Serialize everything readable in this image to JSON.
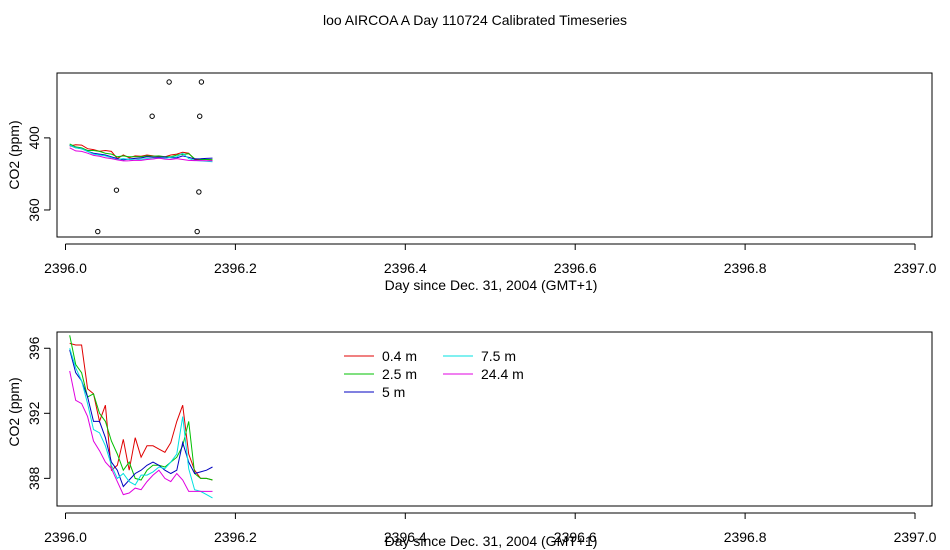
{
  "title": "loo AIRCOA A  Day 110724  Calibrated Timeseries",
  "colors": {
    "0.4 m": "#e00000",
    "2.5 m": "#00c000",
    "5 m": "#0000c0",
    "7.5 m": "#00e0e0",
    "24.4 m": "#e000e0",
    "points": "#000000"
  },
  "chart_data": [
    {
      "type": "line",
      "xlabel": "Day since Dec. 31, 2004 (GMT+1)",
      "ylabel": "CO2 (ppm)",
      "xlim": [
        2395.99,
        2397.02
      ],
      "ylim": [
        345,
        436
      ],
      "xticks": [
        2396.0,
        2396.2,
        2396.4,
        2396.6,
        2396.8,
        2397.0
      ],
      "xtick_labels": [
        "2396.0",
        "2396.2",
        "2396.4",
        "2396.6",
        "2396.8",
        "2397.0"
      ],
      "yticks": [
        360,
        400
      ],
      "ytick_labels": [
        "360",
        "400"
      ],
      "series": [
        {
          "name": "0.4 m",
          "x": [
            2396.005,
            2396.012,
            2396.019,
            2396.026,
            2396.033,
            2396.04,
            2396.047,
            2396.054,
            2396.061,
            2396.068,
            2396.075,
            2396.082,
            2396.089,
            2396.096,
            2396.103,
            2396.11,
            2396.117,
            2396.124,
            2396.131,
            2396.138,
            2396.145,
            2396.152,
            2396.159,
            2396.166,
            2396.173
          ],
          "y": [
            395.5,
            396.2,
            396.0,
            394.0,
            393.5,
            392.6,
            393.0,
            392.5,
            388.5,
            390.5,
            389.0,
            390.0,
            389.8,
            390.5,
            390.0,
            389.5,
            389.5,
            390.5,
            391.0,
            392.0,
            391.5,
            388.0,
            388.0,
            388.0,
            387.8
          ]
        },
        {
          "name": "2.5 m",
          "x": [
            2396.005,
            2396.012,
            2396.019,
            2396.026,
            2396.033,
            2396.04,
            2396.047,
            2396.054,
            2396.061,
            2396.068,
            2396.075,
            2396.082,
            2396.089,
            2396.096,
            2396.103,
            2396.11,
            2396.117,
            2396.124,
            2396.131,
            2396.138,
            2396.145,
            2396.152,
            2396.159,
            2396.166,
            2396.173
          ],
          "y": [
            396.6,
            395.0,
            394.5,
            393.0,
            393.0,
            392.5,
            391.5,
            391.0,
            389.5,
            390.0,
            389.5,
            389.5,
            389.5,
            390.0,
            389.8,
            390.0,
            389.5,
            389.5,
            390.5,
            390.8,
            391.2,
            388.5,
            388.0,
            388.0,
            387.9
          ]
        },
        {
          "name": "5 m",
          "x": [
            2396.005,
            2396.012,
            2396.019,
            2396.026,
            2396.033,
            2396.04,
            2396.047,
            2396.054,
            2396.061,
            2396.068,
            2396.075,
            2396.082,
            2396.089,
            2396.096,
            2396.103,
            2396.11,
            2396.117,
            2396.124,
            2396.131,
            2396.138,
            2396.145,
            2396.152,
            2396.159,
            2396.166,
            2396.173
          ],
          "y": [
            395.8,
            394.5,
            394.0,
            392.5,
            391.5,
            391.0,
            390.5,
            389.5,
            388.5,
            387.8,
            388.3,
            388.6,
            388.9,
            389.5,
            389.3,
            389.2,
            389.4,
            389.0,
            388.9,
            390.0,
            389.2,
            388.3,
            388.4,
            388.6,
            388.8
          ]
        },
        {
          "name": "7.5 m",
          "x": [
            2396.005,
            2396.012,
            2396.019,
            2396.026,
            2396.033,
            2396.04,
            2396.047,
            2396.054,
            2396.061,
            2396.068,
            2396.075,
            2396.082,
            2396.089,
            2396.096,
            2396.103,
            2396.11,
            2396.117,
            2396.124,
            2396.131,
            2396.138,
            2396.145,
            2396.152,
            2396.159,
            2396.166,
            2396.173
          ],
          "y": [
            396.0,
            394.5,
            394.0,
            392.5,
            391.0,
            390.5,
            390.0,
            389.0,
            388.0,
            388.5,
            388.0,
            387.8,
            388.2,
            388.5,
            388.4,
            388.8,
            388.6,
            389.2,
            389.5,
            391.5,
            388.5,
            387.5,
            387.2,
            387.0,
            386.8
          ]
        },
        {
          "name": "24.4 m",
          "x": [
            2396.005,
            2396.012,
            2396.019,
            2396.026,
            2396.033,
            2396.04,
            2396.047,
            2396.054,
            2396.061,
            2396.068,
            2396.075,
            2396.082,
            2396.089,
            2396.096,
            2396.103,
            2396.11,
            2396.117,
            2396.124,
            2396.131,
            2396.138,
            2396.145,
            2396.152,
            2396.159,
            2396.166,
            2396.173
          ],
          "y": [
            394.5,
            392.8,
            392.5,
            391.5,
            390.3,
            389.8,
            389.0,
            388.5,
            387.8,
            387.2,
            387.3,
            387.6,
            387.5,
            388.0,
            388.3,
            388.8,
            388.2,
            388.0,
            388.5,
            388.0,
            387.5,
            387.4,
            387.4,
            387.3,
            387.3
          ]
        }
      ],
      "points": {
        "x": [
          2396.038,
          2396.06,
          2396.102,
          2396.122,
          2396.155,
          2396.157,
          2396.158,
          2396.16
        ],
        "y": [
          348,
          371,
          412,
          431,
          348,
          370,
          412,
          431
        ]
      }
    },
    {
      "type": "line",
      "xlabel": "Day since Dec. 31, 2004 (GMT+1)",
      "ylabel": "CO2 (ppm)",
      "xlim": [
        2395.99,
        2397.02
      ],
      "ylim": [
        386.3,
        397.0
      ],
      "xticks": [
        2396.0,
        2396.2,
        2396.4,
        2396.6,
        2396.8,
        2397.0
      ],
      "xtick_labels": [
        "2396.0",
        "2396.2",
        "2396.4",
        "2396.6",
        "2396.8",
        "2397.0"
      ],
      "yticks": [
        388,
        392,
        396
      ],
      "ytick_labels": [
        "388",
        "392",
        "396"
      ],
      "legend": [
        "0.4 m",
        "2.5 m",
        "5 m",
        "7.5 m",
        "24.4 m"
      ],
      "legend_position": "top-center",
      "series": [
        {
          "name": "0.4 m",
          "x": [
            2396.005,
            2396.012,
            2396.019,
            2396.026,
            2396.033,
            2396.04,
            2396.047,
            2396.054,
            2396.061,
            2396.068,
            2396.075,
            2396.082,
            2396.089,
            2396.096,
            2396.103,
            2396.11,
            2396.117,
            2396.124,
            2396.131,
            2396.138,
            2396.145,
            2396.152,
            2396.159,
            2396.166,
            2396.173
          ],
          "y": [
            396.3,
            396.2,
            396.2,
            393.5,
            393.2,
            391.5,
            392.5,
            388.5,
            388.8,
            390.4,
            388.5,
            390.5,
            389.3,
            390.0,
            390.0,
            389.8,
            389.6,
            390.2,
            391.5,
            392.5,
            389.5,
            388.5,
            388.0,
            388.0,
            387.9
          ]
        },
        {
          "name": "2.5 m",
          "x": [
            2396.005,
            2396.012,
            2396.019,
            2396.026,
            2396.033,
            2396.04,
            2396.047,
            2396.054,
            2396.061,
            2396.068,
            2396.075,
            2396.082,
            2396.089,
            2396.096,
            2396.103,
            2396.11,
            2396.117,
            2396.124,
            2396.131,
            2396.138,
            2396.145,
            2396.152,
            2396.159,
            2396.166,
            2396.173
          ],
          "y": [
            396.8,
            395.0,
            394.5,
            393.0,
            393.2,
            392.0,
            391.5,
            390.3,
            389.5,
            388.5,
            389.0,
            388.0,
            387.9,
            388.5,
            388.8,
            388.8,
            388.7,
            389.0,
            389.3,
            390.0,
            391.5,
            388.3,
            388.0,
            388.0,
            387.9
          ]
        },
        {
          "name": "5 m",
          "x": [
            2396.005,
            2396.012,
            2396.019,
            2396.026,
            2396.033,
            2396.04,
            2396.047,
            2396.054,
            2396.061,
            2396.068,
            2396.075,
            2396.082,
            2396.089,
            2396.096,
            2396.103,
            2396.11,
            2396.117,
            2396.124,
            2396.131,
            2396.138,
            2396.145,
            2396.152,
            2396.159,
            2396.166,
            2396.173
          ],
          "y": [
            395.9,
            394.5,
            394.0,
            393.0,
            391.5,
            391.5,
            390.5,
            389.0,
            388.5,
            387.5,
            387.9,
            388.3,
            388.5,
            388.8,
            389.0,
            388.8,
            388.5,
            388.3,
            388.5,
            390.2,
            389.0,
            388.3,
            388.4,
            388.5,
            388.7
          ]
        },
        {
          "name": "7.5 m",
          "x": [
            2396.005,
            2396.012,
            2396.019,
            2396.026,
            2396.033,
            2396.04,
            2396.047,
            2396.054,
            2396.061,
            2396.068,
            2396.075,
            2396.082,
            2396.089,
            2396.096,
            2396.103,
            2396.11,
            2396.117,
            2396.124,
            2396.131,
            2396.138,
            2396.145,
            2396.152,
            2396.159,
            2396.166,
            2396.173
          ],
          "y": [
            396.0,
            394.8,
            394.0,
            392.6,
            391.0,
            390.8,
            390.0,
            388.8,
            388.0,
            388.3,
            387.8,
            387.6,
            388.2,
            388.2,
            388.4,
            388.7,
            388.6,
            389.0,
            389.5,
            391.8,
            388.6,
            387.3,
            387.2,
            387.0,
            386.8
          ]
        },
        {
          "name": "24.4 m",
          "x": [
            2396.005,
            2396.012,
            2396.019,
            2396.026,
            2396.033,
            2396.04,
            2396.047,
            2396.054,
            2396.061,
            2396.068,
            2396.075,
            2396.082,
            2396.089,
            2396.096,
            2396.103,
            2396.11,
            2396.117,
            2396.124,
            2396.131,
            2396.138,
            2396.145,
            2396.152,
            2396.159,
            2396.166,
            2396.173
          ],
          "y": [
            394.6,
            392.8,
            392.6,
            391.8,
            390.3,
            389.7,
            389.0,
            388.6,
            387.8,
            387.0,
            387.1,
            387.4,
            387.3,
            387.8,
            388.2,
            388.5,
            388.0,
            387.8,
            388.3,
            387.9,
            387.2,
            387.2,
            387.2,
            387.2,
            387.2
          ]
        }
      ]
    }
  ]
}
